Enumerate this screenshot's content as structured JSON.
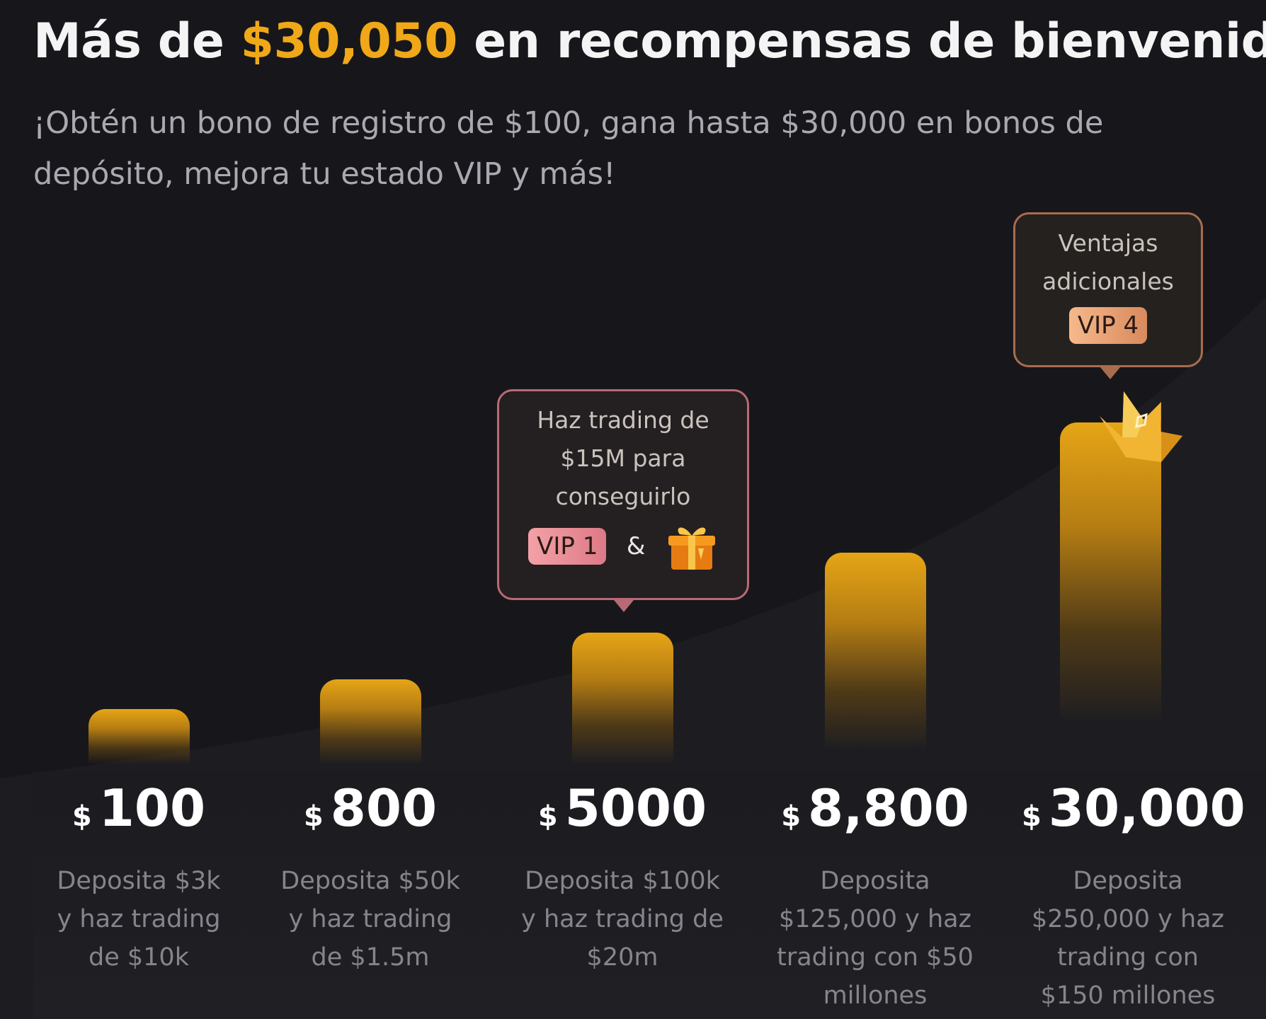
{
  "header": {
    "title_prefix": "Más de ",
    "title_amount": "$30,050",
    "title_suffix": " en recompensas de bienvenida",
    "subtitle": "¡Obtén un bono de registro de $100, gana hasta $30,000 en bonos de depósito, mejora tu estado VIP y más!"
  },
  "colors": {
    "background": "#17171b",
    "accent": "#f0a818",
    "vip1_badge": "#e88b95",
    "vip4_badge": "#e9a274"
  },
  "tooltips": {
    "vip1": {
      "text": "Haz trading de $15M para conseguirlo",
      "badge": "VIP 1",
      "connector": "&",
      "icon": "gift-box-icon"
    },
    "vip4": {
      "text": "Ventajas adicionales",
      "badge": "VIP 4",
      "icon": "crown-icon"
    }
  },
  "rewards": [
    {
      "currency": "$",
      "amount": "100",
      "description": "Deposita $3k y haz trading de $10k"
    },
    {
      "currency": "$",
      "amount": "800",
      "description": "Deposita $50k y haz trading de $1.5m"
    },
    {
      "currency": "$",
      "amount": "5000",
      "description": "Deposita $100k y haz trading de $20m"
    },
    {
      "currency": "$",
      "amount": "8,800",
      "description": "Deposita $125,000 y haz trading con $50 millones"
    },
    {
      "currency": "$",
      "amount": "30,000",
      "description": "Deposita $250,000 y haz trading con $150 millones"
    }
  ]
}
